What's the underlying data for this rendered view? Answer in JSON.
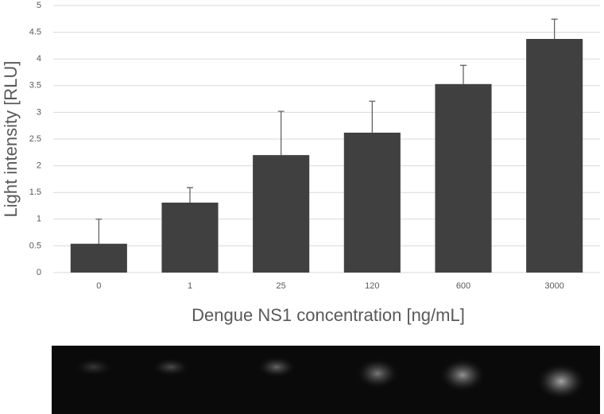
{
  "chart_data": {
    "type": "bar",
    "categories": [
      "0",
      "1",
      "25",
      "120",
      "600",
      "3000"
    ],
    "values": [
      0.54,
      1.31,
      2.2,
      2.62,
      3.53,
      4.375
    ],
    "errors": [
      0.46,
      0.28,
      0.82,
      0.59,
      0.35,
      0.37
    ],
    "color": "#404040",
    "x_label": "Dengue NS1 concentration [ng/mL]",
    "y_label": "Light intensity [RLU]",
    "ylim": [
      0,
      5
    ],
    "yticks": [
      0,
      0.5,
      1,
      1.5,
      2,
      2.5,
      3,
      3.5,
      4,
      4.5,
      5
    ],
    "grid": true
  }
}
